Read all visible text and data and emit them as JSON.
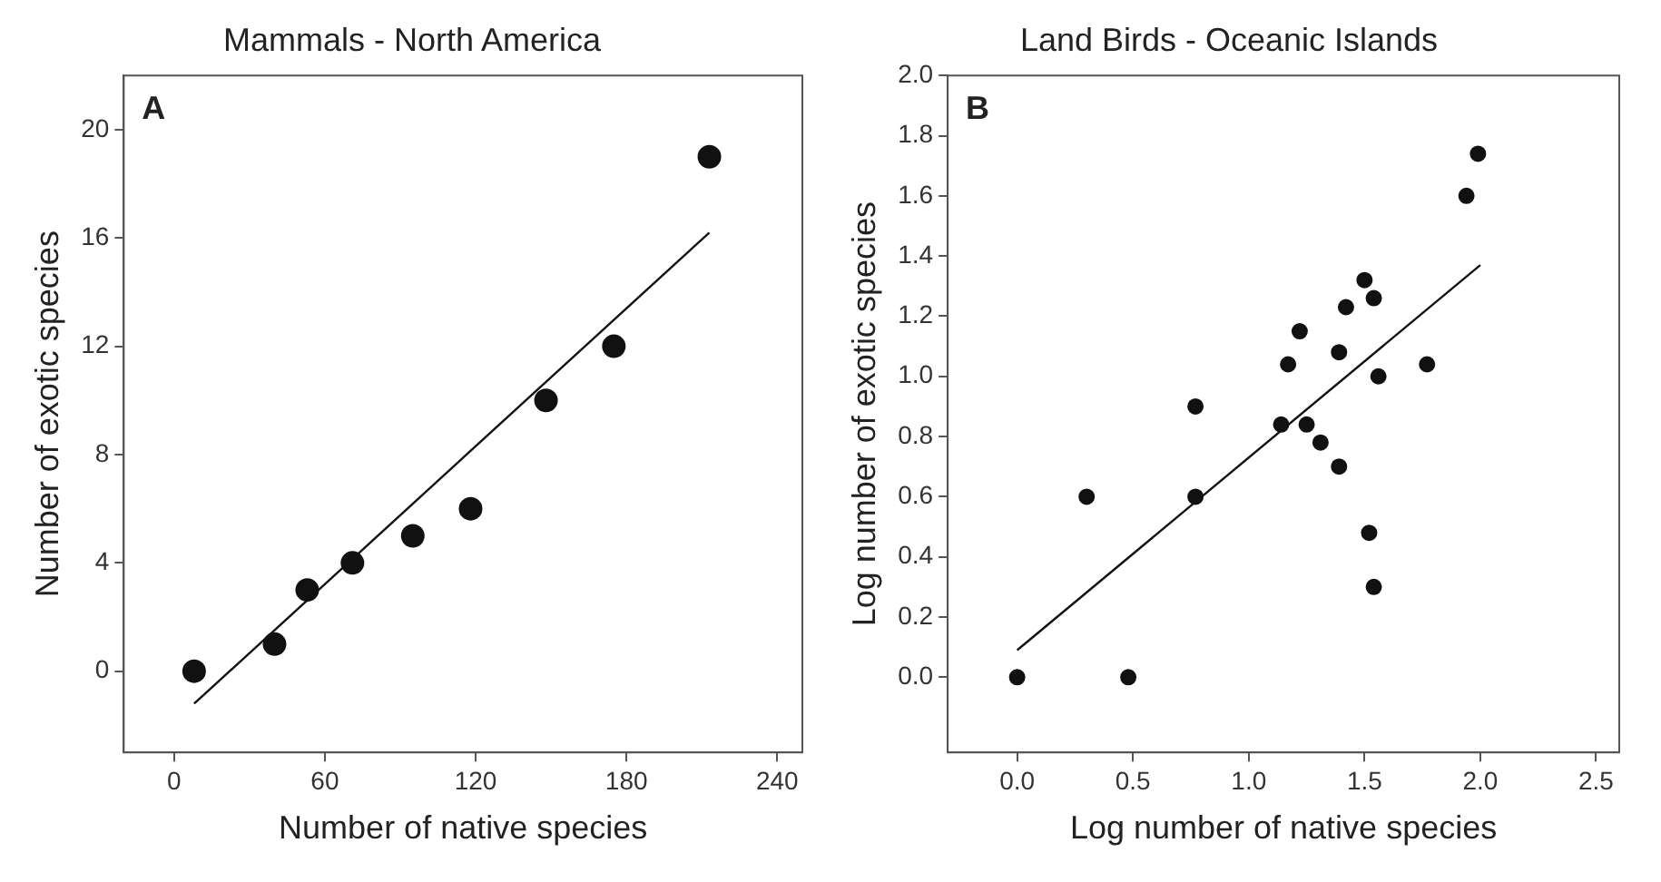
{
  "chart_data": [
    {
      "type": "scatter",
      "title": "Mammals - North America",
      "xlabel": "Number of native species",
      "ylabel": "Number of exotic species",
      "annotations": [
        "A"
      ],
      "xlim": [
        -20,
        250
      ],
      "ylim": [
        -3,
        22
      ],
      "xticks": [
        0,
        60,
        120,
        180,
        240
      ],
      "yticks": [
        0,
        4,
        8,
        12,
        16,
        20
      ],
      "grid": false,
      "legend": false,
      "series": [
        {
          "marker": "circle",
          "color": "#111111",
          "x": [
            8,
            40,
            53,
            71,
            95,
            118,
            148,
            175,
            213
          ],
          "values": [
            0,
            1,
            3,
            4,
            5,
            6,
            10,
            12,
            19
          ]
        },
        {
          "type": "line",
          "marker": "none",
          "color": "#111111",
          "x": [
            8,
            213
          ],
          "values": [
            -1.2,
            16.2
          ]
        }
      ]
    },
    {
      "type": "scatter",
      "title": "Land Birds - Oceanic Islands",
      "xlabel": "Log number of native species",
      "ylabel": "Log number of exotic species",
      "annotations": [
        "B"
      ],
      "xlim": [
        -0.3,
        2.6
      ],
      "ylim": [
        -0.25,
        2.0
      ],
      "xticks": [
        {
          "value": 0,
          "label": "0.0"
        },
        {
          "value": 0.5,
          "label": "0.5"
        },
        {
          "value": 1,
          "label": "1.0"
        },
        {
          "value": 1.5,
          "label": "1.5"
        },
        {
          "value": 2,
          "label": "2.0"
        },
        {
          "value": 2.5,
          "label": "2.5"
        }
      ],
      "yticks": [
        {
          "value": 0,
          "label": "0.0"
        },
        {
          "value": 0.2,
          "label": "0.2"
        },
        {
          "value": 0.4,
          "label": "0.4"
        },
        {
          "value": 0.6,
          "label": "0.6"
        },
        {
          "value": 0.8,
          "label": "0.8"
        },
        {
          "value": 1,
          "label": "1.0"
        },
        {
          "value": 1.2,
          "label": "1.2"
        },
        {
          "value": 1.4,
          "label": "1.4"
        },
        {
          "value": 1.6,
          "label": "1.6"
        },
        {
          "value": 1.8,
          "label": "1.8"
        },
        {
          "value": 2,
          "label": "2.0"
        }
      ],
      "grid": false,
      "legend": false,
      "series": [
        {
          "marker": "circle",
          "color": "#111111",
          "x": [
            0,
            0.48,
            0.3,
            0.77,
            0.77,
            1.14,
            1.25,
            1.17,
            1.22,
            1.31,
            1.39,
            1.39,
            1.42,
            1.5,
            1.54,
            1.56,
            1.77,
            1.52,
            1.54,
            1.94,
            1.99
          ],
          "values": [
            0,
            0,
            0.6,
            0.6,
            0.9,
            0.84,
            0.84,
            1.04,
            1.15,
            0.78,
            0.7,
            1.08,
            1.23,
            1.32,
            1.26,
            1.0,
            1.04,
            0.48,
            0.3,
            1.6,
            1.74
          ]
        },
        {
          "type": "line",
          "marker": "none",
          "color": "#111111",
          "x": [
            0,
            2.0
          ],
          "values": [
            0.09,
            1.37
          ]
        }
      ]
    }
  ]
}
